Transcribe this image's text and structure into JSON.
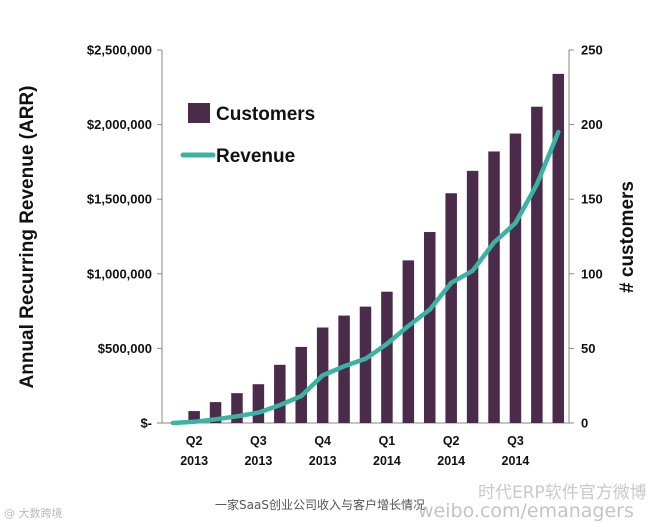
{
  "chart_data": {
    "type": "bar",
    "left_axis_title": "Annual Recurring Revenue (ARR)",
    "right_axis_title": "# customers",
    "left_ticks": [
      "$-",
      "$500,000",
      "$1,000,000",
      "$1,500,000",
      "$2,000,000",
      "$2,500,000"
    ],
    "right_ticks": [
      "0",
      "50",
      "100",
      "150",
      "200",
      "250"
    ],
    "left_ylim": [
      0,
      2500000
    ],
    "right_ylim": [
      0,
      250
    ],
    "quarter_labels": [
      {
        "q": "Q2",
        "y": "2013"
      },
      {
        "q": "Q3",
        "y": "2013"
      },
      {
        "q": "Q4",
        "y": "2013"
      },
      {
        "q": "Q1",
        "y": "2014"
      },
      {
        "q": "Q2",
        "y": "2014"
      },
      {
        "q": "Q3",
        "y": "2014"
      }
    ],
    "customers": [
      0,
      8,
      14,
      20,
      26,
      39,
      51,
      64,
      72,
      78,
      88,
      109,
      128,
      154,
      169,
      182,
      194,
      212,
      234
    ],
    "revenue": [
      0,
      8000,
      25000,
      45000,
      70000,
      120000,
      180000,
      320000,
      380000,
      430000,
      530000,
      650000,
      760000,
      940000,
      1020000,
      1210000,
      1340000,
      1600000,
      1950000
    ],
    "legend": {
      "bars_label": "Customers",
      "line_label": "Revenue",
      "placement": "top-left"
    },
    "colors": {
      "bars": "#4a2b4a",
      "line": "#3bb3a3"
    },
    "grid": false
  },
  "caption": "一家SaaS创业公司收入与客户增长情况",
  "watermark_left": "@ 大数跨境",
  "watermark_right_1": "时代ERP软件官方微博",
  "watermark_right_2": "weibo.com/emanagers"
}
